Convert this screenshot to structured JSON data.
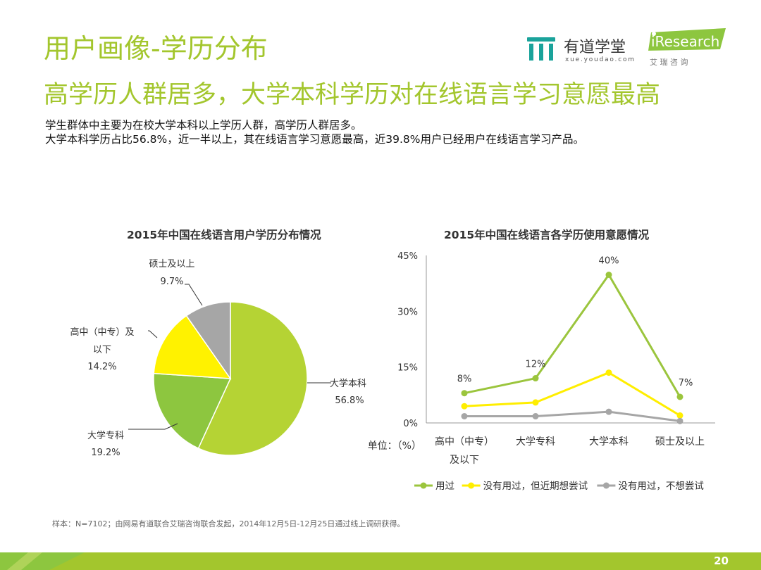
{
  "header": {
    "title": "用户画像-学历分布",
    "subtitle": "高学历人群居多，大学本科学历对在线语言学习意愿最高",
    "desc_line1": "学生群体中主要为在校大学本科以上学历人群，高学历人群居多。",
    "desc_line2": "大学本科学历占比56.8%，近一半以上，其在线语言学习意愿最高，近39.8%用户已经用户在线语言学习产品。"
  },
  "logos": {
    "youdao_name": "有道学堂",
    "youdao_url": "xue.youdao.com",
    "iresearch_name": "iResearch",
    "iresearch_cn": "艾 瑞 咨 询"
  },
  "footnote": "样本：N=7102；由网易有道联合艾瑞咨询联合发起，2014年12月5日-12月25日通过线上调研获得。",
  "page_number": "20",
  "colors": {
    "brand_green": "#a3c62d",
    "pie_1": "#b5d334",
    "pie_2": "#8dc63f",
    "pie_3": "#fff200",
    "pie_4": "#a6a6a6",
    "line_used": "#9bc53d",
    "line_want": "#ffee00",
    "line_no": "#a6a6a6"
  },
  "chart_data": [
    {
      "type": "pie",
      "title": "2015年中国在线语言用户学历分布情况",
      "slices": [
        {
          "label": "大学本科",
          "value": 56.8,
          "value_label": "56.8%"
        },
        {
          "label": "大学专科",
          "value": 19.2,
          "value_label": "19.2%"
        },
        {
          "label": "高中（中专）及以下",
          "value": 14.2,
          "value_label": "14.2%"
        },
        {
          "label": "硕士及以上",
          "value": 9.7,
          "value_label": "9.7%"
        }
      ]
    },
    {
      "type": "line",
      "title": "2015年中国在线语言各学历使用意愿情况",
      "unit_label": "单位：（%）",
      "categories": [
        "高中（中专）及以下",
        "大学专科",
        "大学本科",
        "硕士及以上"
      ],
      "yticks": [
        "0%",
        "15%",
        "30%",
        "45%"
      ],
      "ylim": [
        0,
        45
      ],
      "series": [
        {
          "name": "用过",
          "values": [
            8,
            12,
            39.8,
            7
          ],
          "labels": [
            "8%",
            "12%",
            "40%",
            "7%"
          ]
        },
        {
          "name": "没有用过，但近期想尝试",
          "values": [
            4.5,
            5.5,
            13.5,
            2
          ]
        },
        {
          "name": "没有用过，不想尝试",
          "values": [
            1.8,
            1.8,
            3,
            0.5
          ]
        }
      ],
      "legend_position": "bottom"
    }
  ]
}
